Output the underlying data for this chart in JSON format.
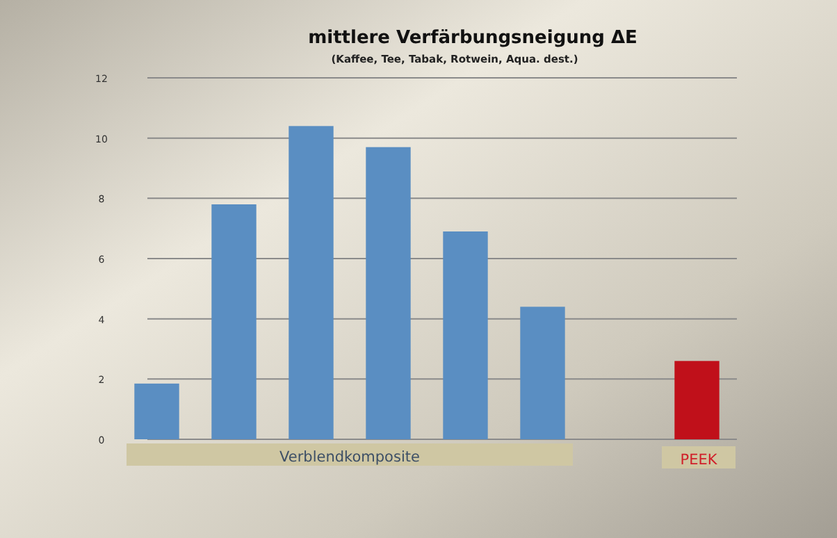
{
  "chart_data": {
    "type": "bar",
    "title": "mittlere Verfärbungsneigung   ΔE",
    "subtitle": "(Kaffee, Tee, Tabak, Rotwein, Aqua. dest.)",
    "categories": [
      null,
      null,
      null,
      null,
      null,
      null,
      null
    ],
    "values": [
      1.85,
      7.8,
      10.4,
      9.7,
      6.9,
      4.4,
      2.6
    ],
    "colors": [
      "#5a8ec2",
      "#5a8ec2",
      "#5a8ec2",
      "#5a8ec2",
      "#5a8ec2",
      "#5a8ec2",
      "#c0101a"
    ],
    "ylim": [
      0,
      12
    ],
    "yticks": [
      0,
      2,
      4,
      6,
      8,
      10,
      12
    ],
    "grid": "y",
    "annotations": [
      "Verblendkomposite",
      "PEEK"
    ]
  }
}
